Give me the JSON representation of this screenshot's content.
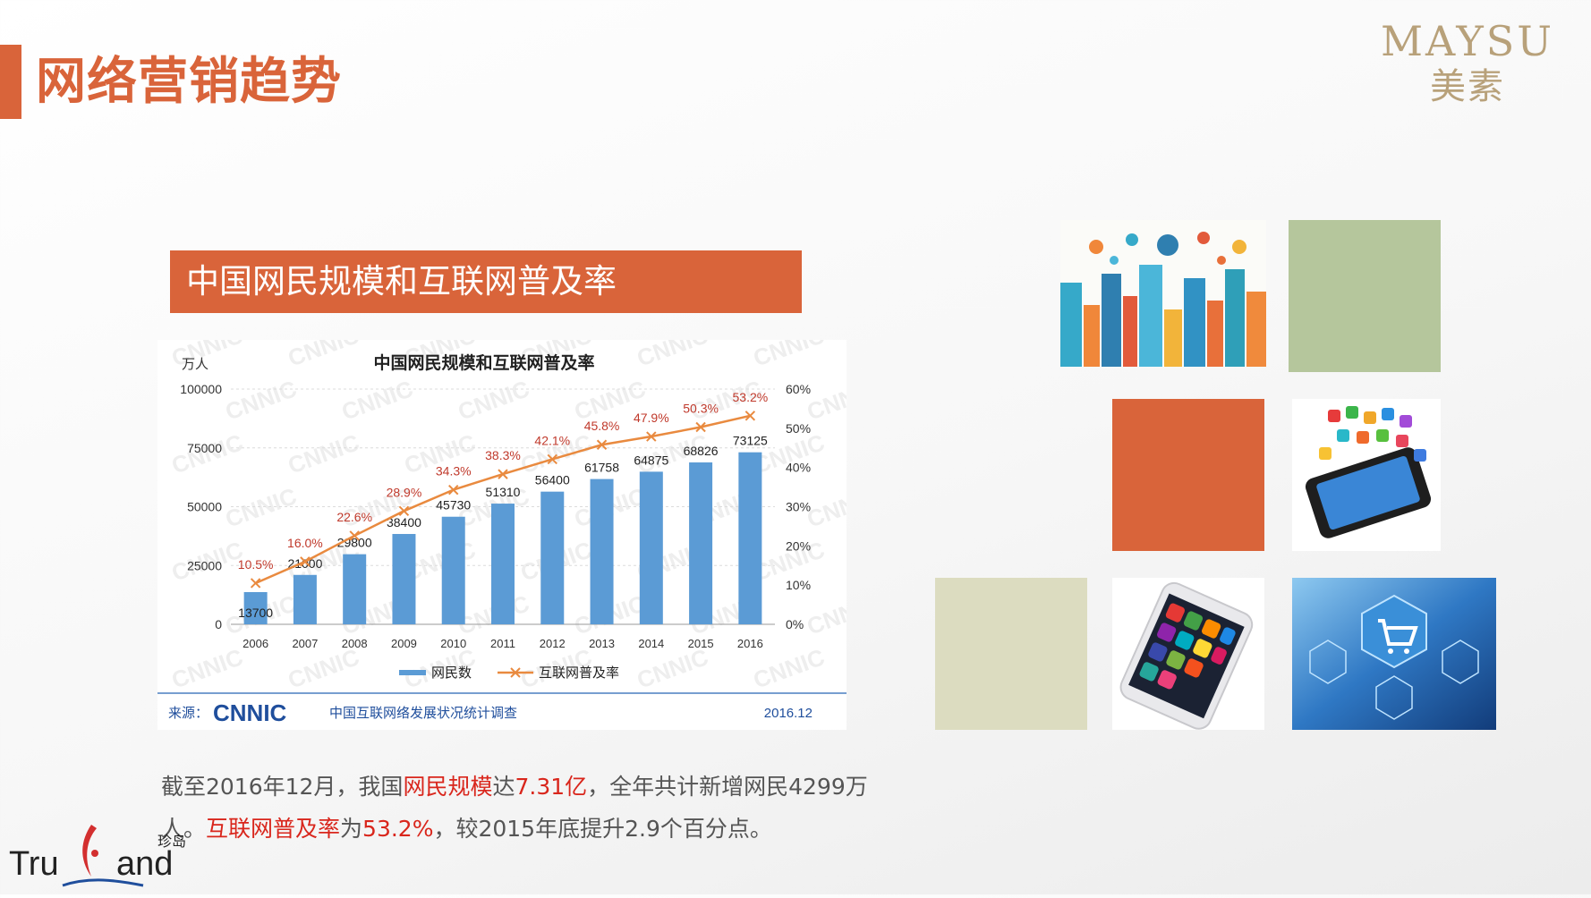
{
  "header": {
    "title": "网络营销趋势",
    "brand_en": "MAYSU",
    "brand_cn": "美素"
  },
  "chart_banner": "中国网民规模和互联网普及率",
  "chart_data": {
    "type": "bar",
    "title": "中国网民规模和互联网普及率",
    "y_left_unit": "万人",
    "categories": [
      "2006",
      "2007",
      "2008",
      "2009",
      "2010",
      "2011",
      "2012",
      "2013",
      "2014",
      "2015",
      "2016"
    ],
    "series": [
      {
        "name": "网民数",
        "type": "bar",
        "values": [
          13700,
          21000,
          29800,
          38400,
          45730,
          51310,
          56400,
          61758,
          64875,
          68826,
          73125
        ]
      },
      {
        "name": "互联网普及率",
        "type": "line",
        "values": [
          10.5,
          16.0,
          22.6,
          28.9,
          34.3,
          38.3,
          42.1,
          45.8,
          47.9,
          50.3,
          53.2
        ]
      }
    ],
    "y_left_ticks": [
      "0",
      "25000",
      "50000",
      "75000",
      "100000"
    ],
    "y_left_range": [
      0,
      100000
    ],
    "y_right_ticks": [
      "0%",
      "10%",
      "20%",
      "30%",
      "40%",
      "50%",
      "60%"
    ],
    "y_right_range": [
      0,
      60
    ],
    "rate_labels": [
      "10.5%",
      "16.0%",
      "22.6%",
      "28.9%",
      "34.3%",
      "38.3%",
      "42.1%",
      "45.8%",
      "47.9%",
      "50.3%",
      "53.2%"
    ],
    "legend_position": "bottom",
    "source_prefix": "来源：",
    "source_org": "CNNIC",
    "source_text": "中国互联网络发展状况统计调查",
    "source_date": "2016.12",
    "watermark": "CNNIC",
    "colors": {
      "bar": "#5b9bd5",
      "line": "#e98a3f",
      "rate_label": "#c0392b"
    }
  },
  "description": {
    "p1": "截至2016年12月，我国",
    "h1": "网民规模",
    "p2": "达",
    "h2": "7.31亿",
    "p3": "，全年共计新增网民4299万人。",
    "h3": "互联网普及率",
    "p4": "为",
    "h4": "53.2%",
    "p5": "，较2015年底提升2.9个百分点。"
  },
  "footer_logo": {
    "text_left": "Tru",
    "text_right": "and",
    "cn": "珍岛"
  },
  "tiles": {
    "green": "#b5c69c",
    "orange": "#d9643a",
    "beige": "#dcdcc0"
  },
  "images": {
    "city": "smart-city-icons",
    "phone_apps": "smartphone-apps",
    "iphone": "iphone-apps",
    "cart": "ecommerce-cart"
  }
}
